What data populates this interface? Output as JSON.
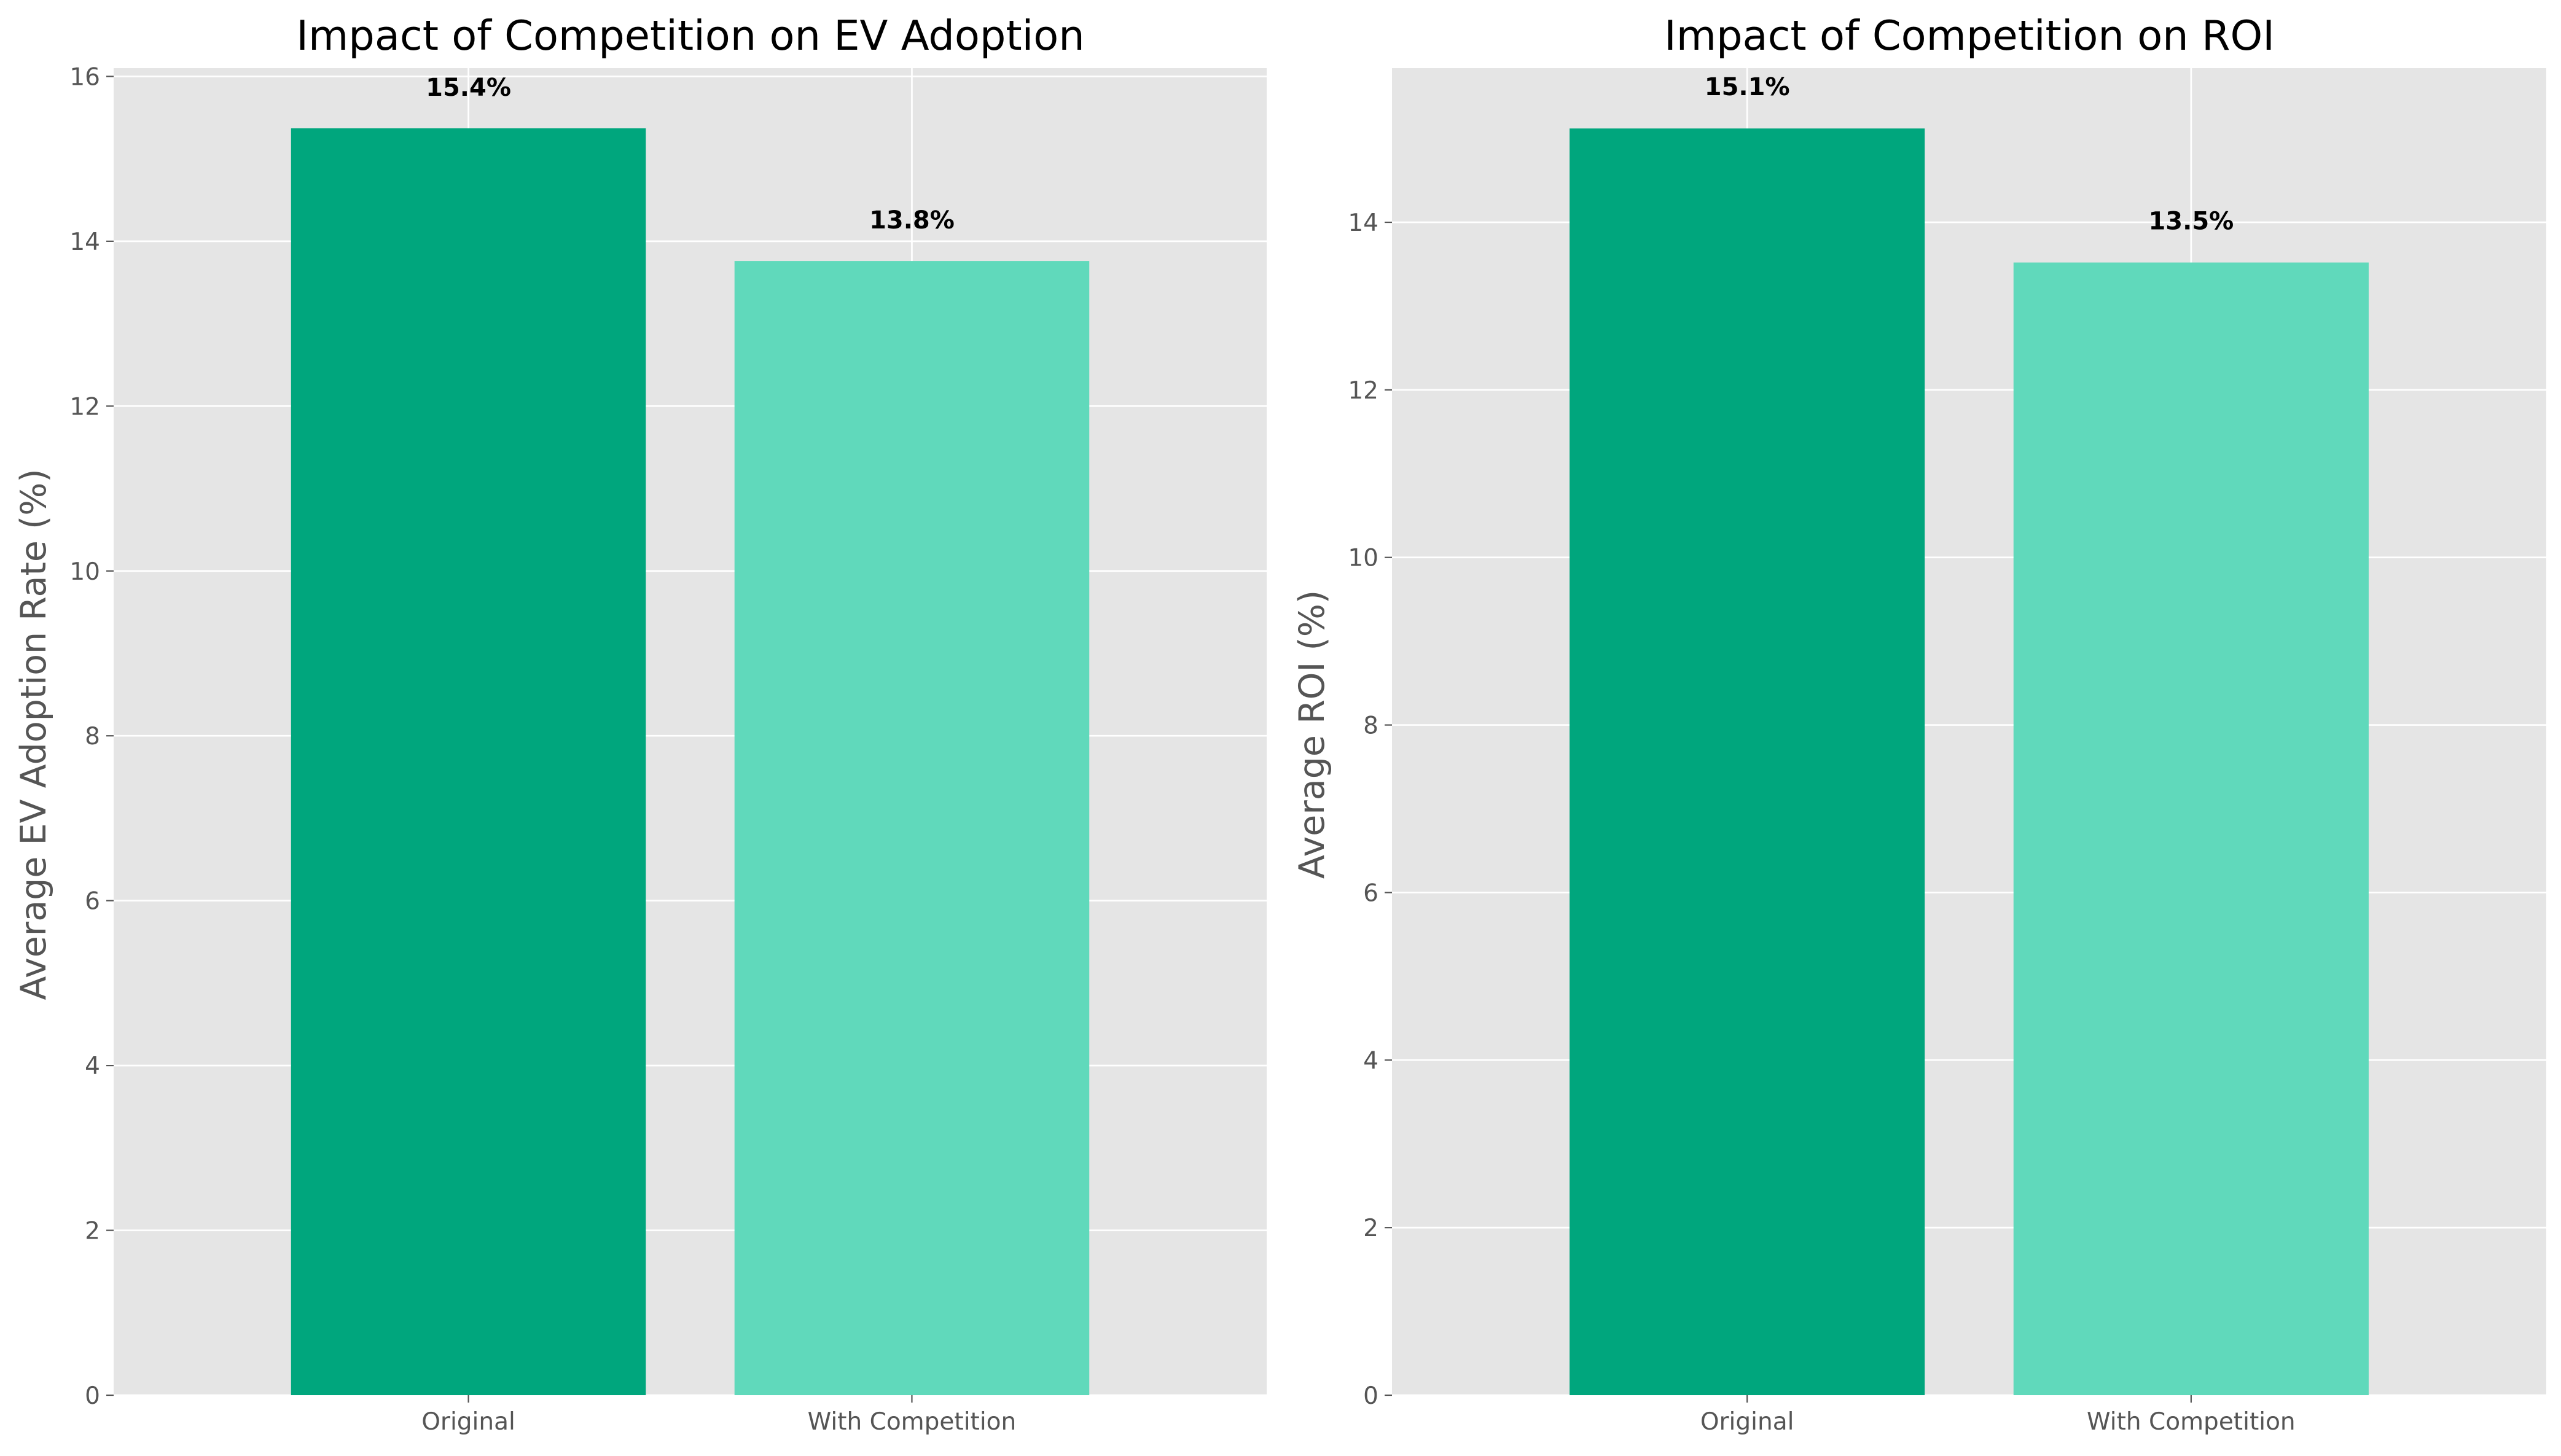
{
  "chart_data": [
    {
      "type": "bar",
      "title": "Impact of Competition on EV Adoption",
      "xlabel": "",
      "ylabel": "Average EV Adoption Rate (%)",
      "categories": [
        "Original",
        "With Competition"
      ],
      "values": [
        15.37,
        13.76
      ],
      "data_labels": [
        "15.4%",
        "13.8%"
      ],
      "colors": [
        "#00a67d",
        "#60d9bb"
      ],
      "ylim": [
        0,
        16.1
      ],
      "yticks": [
        0,
        2,
        4,
        6,
        8,
        10,
        12,
        14,
        16
      ],
      "ytick_labels": [
        "0",
        "2",
        "4",
        "6",
        "8",
        "10",
        "12",
        "14",
        "16"
      ],
      "grid": true,
      "background": "#e5e5e5"
    },
    {
      "type": "bar",
      "title": "Impact of Competition on ROI",
      "xlabel": "",
      "ylabel": "Average ROI (%)",
      "categories": [
        "Original",
        "With Competition"
      ],
      "values": [
        15.12,
        13.52
      ],
      "data_labels": [
        "15.1%",
        "13.5%"
      ],
      "colors": [
        "#00a67d",
        "#60d9bb"
      ],
      "ylim": [
        0,
        15.84
      ],
      "yticks": [
        0,
        2,
        4,
        6,
        8,
        10,
        12,
        14
      ],
      "ytick_labels": [
        "0",
        "2",
        "4",
        "6",
        "8",
        "10",
        "12",
        "14"
      ],
      "grid": true,
      "background": "#e5e5e5"
    }
  ]
}
